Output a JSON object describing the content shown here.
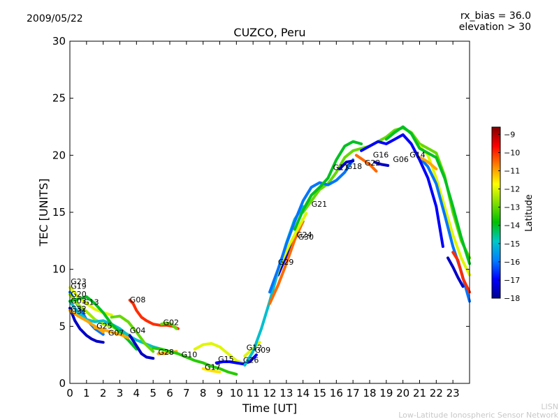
{
  "header": {
    "date": "2009/05/22",
    "rx_bias": "rx_bias = 36.0",
    "elevation": "elevation > 30"
  },
  "footer": {
    "org_short": "LISN",
    "org_long": "Low-Latitude Ionospheric Sensor Network"
  },
  "colors": {
    "blue": "#0000b0",
    "cyan": "#1a99d0",
    "teal": "#19a888",
    "green": "#1fc41f",
    "lime": "#9be21c",
    "yellow": "#f0e000",
    "orange": "#ff9a00",
    "red": "#e01010"
  },
  "chart_data": {
    "type": "line",
    "title": "CUZCO, Peru",
    "xlabel": "Time [UT]",
    "ylabel": "TEC [UNITS]",
    "xlim": [
      0,
      24
    ],
    "ylim": [
      0,
      30
    ],
    "xticks": [
      "0",
      "1",
      "2",
      "3",
      "4",
      "5",
      "6",
      "7",
      "8",
      "9",
      "10",
      "11",
      "12",
      "13",
      "14",
      "15",
      "16",
      "17",
      "18",
      "19",
      "20",
      "21",
      "22",
      "23"
    ],
    "yticks": [
      "0",
      "5",
      "10",
      "15",
      "20",
      "25",
      "30"
    ],
    "grid": false,
    "colorbar": {
      "label": "Latitude",
      "min": -18,
      "max": -8.6,
      "ticks": [
        "-18",
        "-17",
        "-16",
        "-15",
        "-14",
        "-13",
        "-12",
        "-11",
        "-10",
        "-9"
      ],
      "stops": [
        "#00008f",
        "#0000ff",
        "#0080ff",
        "#00c8c8",
        "#00c000",
        "#80e000",
        "#ffff00",
        "#ff8000",
        "#ff0000",
        "#800000"
      ]
    },
    "series": [
      {
        "name": "G23",
        "label_x": 0.05,
        "label_y": 8.7,
        "lat": -12,
        "x": [
          0,
          0.5,
          1,
          1.5,
          2,
          2.5
        ],
        "y": [
          8.4,
          7.6,
          7.0,
          6.5,
          6.2,
          6.0
        ]
      },
      {
        "name": "G19",
        "label_x": 0.05,
        "label_y": 8.3,
        "lat": -16,
        "x": [
          0,
          0.5,
          1,
          1.5,
          2
        ],
        "y": [
          8.0,
          6.8,
          5.6,
          4.8,
          4.3
        ]
      },
      {
        "name": "G20",
        "label_x": 0.05,
        "label_y": 7.6,
        "lat": -12.5,
        "x": [
          0,
          0.5,
          1,
          1.5,
          2,
          2.5,
          3,
          3.5
        ],
        "y": [
          7.8,
          6.9,
          6.3,
          5.6,
          5.2,
          5.0,
          4.6,
          4.3
        ]
      },
      {
        "name": "G03",
        "label_x": 0.05,
        "label_y": 7.0,
        "lat": -15,
        "x": [
          0,
          0.5,
          1,
          1.5,
          2,
          2.5,
          3,
          3.5,
          4,
          4.5,
          5,
          5.5,
          6
        ],
        "y": [
          7.2,
          6.2,
          5.6,
          5.4,
          5.5,
          5.2,
          4.8,
          4.2,
          3.8,
          3.5,
          3.2,
          3.0,
          2.8
        ]
      },
      {
        "name": "G13",
        "label_x": 0.8,
        "label_y": 6.9,
        "lat": -14,
        "x": [
          0,
          0.5,
          1,
          1.5,
          2,
          2.5,
          3,
          3.5,
          4
        ],
        "y": [
          7.2,
          7.4,
          7.6,
          7.0,
          6.2,
          5.2,
          4.5,
          3.8,
          3.0
        ]
      },
      {
        "name": "G32",
        "label_x": 0.05,
        "label_y": 6.3,
        "lat": -17.5,
        "x": [
          0,
          0.3,
          0.6,
          1,
          1.3,
          1.6,
          2
        ],
        "y": [
          6.6,
          5.5,
          4.8,
          4.2,
          3.9,
          3.7,
          3.6
        ]
      },
      {
        "name": "G31",
        "label_x": 0.05,
        "label_y": 6.1,
        "lat": -11,
        "x": [
          0,
          0.5,
          1,
          1.5,
          2
        ],
        "y": [
          6.4,
          5.9,
          5.5,
          5.0,
          4.5
        ]
      },
      {
        "name": "G30",
        "label_x": 13.7,
        "label_y": 12.6,
        "lat": -17.5,
        "x": [
          12.5,
          13,
          13.5,
          14
        ],
        "y": [
          9.5,
          11.2,
          12.8,
          14.2
        ]
      },
      {
        "name": "G08",
        "label_x": 3.6,
        "label_y": 7.1,
        "lat": -10,
        "x": [
          3.6,
          3.8,
          4,
          4.3,
          4.6,
          5,
          5.4,
          5.8,
          6.2,
          6.5
        ],
        "y": [
          7.3,
          7.0,
          6.4,
          5.8,
          5.5,
          5.2,
          5.1,
          5.1,
          5.0,
          4.8
        ]
      },
      {
        "name": "G25",
        "label_x": 1.6,
        "label_y": 4.8,
        "lat": -11,
        "x": [
          1.5,
          2,
          2.5,
          3,
          3.5
        ],
        "y": [
          4.9,
          4.7,
          4.5,
          4.3,
          4.0
        ]
      },
      {
        "name": "G07",
        "label_x": 2.3,
        "label_y": 4.2,
        "lat": -13,
        "x": [
          2.5,
          3,
          3.5,
          4,
          4.5,
          5
        ],
        "y": [
          5.8,
          5.9,
          5.4,
          4.5,
          3.5,
          2.8
        ]
      },
      {
        "name": "G04",
        "label_x": 3.6,
        "label_y": 4.4,
        "lat": -17.5,
        "x": [
          3.6,
          4,
          4.3,
          4.6,
          5
        ],
        "y": [
          4.2,
          3.3,
          2.6,
          2.3,
          2.2
        ]
      },
      {
        "name": "G02",
        "label_x": 5.6,
        "label_y": 5.1,
        "lat": -13,
        "x": [
          5.5,
          5.8,
          6.1,
          6.4
        ],
        "y": [
          5.2,
          5.3,
          5.2,
          4.8
        ]
      },
      {
        "name": "G28",
        "label_x": 5.3,
        "label_y": 2.5,
        "lat": -11,
        "x": [
          5.3,
          5.6,
          6,
          6.4
        ],
        "y": [
          2.6,
          2.6,
          2.7,
          2.8
        ]
      },
      {
        "name": "G10",
        "label_x": 6.7,
        "label_y": 2.3,
        "lat": -13.5,
        "x": [
          5,
          5.5,
          6,
          6.5,
          7,
          7.5,
          8,
          8.5,
          9,
          9.5,
          10
        ],
        "y": [
          3.1,
          3.0,
          2.8,
          2.6,
          2.3,
          2.0,
          1.8,
          1.5,
          1.3,
          1.0,
          0.8
        ]
      },
      {
        "name": "G17",
        "label_x": 8.1,
        "label_y": 1.2,
        "lat": -11.5,
        "x": [
          8,
          8.5,
          9
        ],
        "y": [
          1.3,
          1.1,
          1.0
        ]
      },
      {
        "name": "G15",
        "label_x": 8.9,
        "label_y": 1.9,
        "lat": -12,
        "x": [
          7.5,
          8,
          8.5,
          9,
          9.5,
          10,
          10.5
        ],
        "y": [
          3.0,
          3.4,
          3.5,
          3.2,
          2.6,
          2.0,
          1.7
        ]
      },
      {
        "name": "G26",
        "label_x": 10.4,
        "label_y": 1.8,
        "lat": -17,
        "x": [
          8.8,
          9.2,
          9.6,
          10,
          10.4,
          10.8,
          11.2
        ],
        "y": [
          1.8,
          1.9,
          1.9,
          1.8,
          1.7,
          1.9,
          2.5
        ]
      },
      {
        "name": "G12",
        "label_x": 10.6,
        "label_y": 2.9,
        "lat": -12,
        "x": [
          10.5,
          10.8,
          11.1,
          11.4
        ],
        "y": [
          2.4,
          2.8,
          3.2,
          3.6
        ]
      },
      {
        "name": "G09",
        "label_x": 11.1,
        "label_y": 2.7,
        "lat": -15,
        "x": [
          10.5,
          11,
          11.5,
          12,
          12.5,
          13,
          13.5,
          14
        ],
        "y": [
          1.6,
          2.8,
          4.8,
          7.2,
          9.8,
          12.3,
          14.4,
          15.5
        ]
      },
      {
        "name": "G29",
        "label_x": 12.5,
        "label_y": 10.4,
        "lat": -10.5,
        "x": [
          12,
          12.5,
          13,
          13.5,
          14
        ],
        "y": [
          7.0,
          8.6,
          10.5,
          12.6,
          14.2
        ]
      },
      {
        "name": "G24",
        "label_x": 13.6,
        "label_y": 12.8,
        "lat": -12,
        "x": [
          12.2,
          12.7,
          13.2,
          13.7,
          14.2
        ],
        "y": [
          8.8,
          10.6,
          12.2,
          13.6,
          14.9
        ]
      },
      {
        "name": "G21",
        "label_x": 14.5,
        "label_y": 15.5,
        "lat": -16,
        "x": [
          12,
          12.5,
          13,
          13.5,
          14,
          14.5,
          15,
          15.5,
          16,
          16.5,
          17
        ],
        "y": [
          8.0,
          10.0,
          12.2,
          14.2,
          16.0,
          17.2,
          17.6,
          17.4,
          17.8,
          18.5,
          19.6
        ]
      },
      {
        "name": "G11",
        "label_x": 15.8,
        "label_y": 18.7,
        "lat": -14,
        "x": [
          13.5,
          14,
          14.5,
          15,
          15.5,
          16,
          16.5,
          17,
          17.5
        ],
        "y": [
          13.5,
          15.2,
          16.5,
          17.2,
          18.0,
          19.6,
          20.8,
          21.2,
          21.0
        ]
      },
      {
        "name": "G18",
        "label_x": 16.6,
        "label_y": 18.8,
        "lat": -17.5,
        "x": [
          16.2,
          16.6,
          17
        ],
        "y": [
          18.8,
          19.4,
          19.5
        ]
      },
      {
        "name": "G22",
        "label_x": 17.7,
        "label_y": 19.1,
        "lat": -10.5,
        "x": [
          17.2,
          17.6,
          18,
          18.4
        ],
        "y": [
          20.0,
          19.6,
          19.2,
          18.6
        ]
      },
      {
        "name": "G16",
        "label_x": 18.2,
        "label_y": 19.8,
        "lat": -17.5,
        "x": [
          18.3,
          18.7,
          19.1
        ],
        "y": [
          19.4,
          19.2,
          19.1
        ]
      },
      {
        "name": "G06",
        "label_x": 19.4,
        "label_y": 19.4,
        "lat": -17,
        "x": [
          17.5,
          18,
          18.5,
          19,
          19.5,
          20,
          20.5,
          21,
          21.5,
          22,
          22.4
        ],
        "y": [
          20.4,
          20.8,
          21.2,
          21.0,
          21.4,
          21.8,
          21.0,
          19.6,
          18.0,
          15.5,
          12.0
        ]
      },
      {
        "name": "G14",
        "label_x": 20.4,
        "label_y": 19.8,
        "lat": -14,
        "x": [
          19,
          19.5,
          20,
          20.5,
          21,
          21.5,
          22,
          22.5,
          23,
          23.5,
          24
        ],
        "y": [
          21.4,
          22.0,
          22.5,
          21.9,
          20.6,
          20.2,
          19.8,
          18.0,
          15.5,
          12.8,
          10.5
        ]
      }
    ],
    "extra_curves": [
      {
        "lat": -13,
        "x": [
          14,
          14.5,
          15,
          15.5,
          16,
          16.5,
          17,
          17.5,
          18,
          18.5,
          19,
          19.5,
          20,
          20.5,
          21,
          21.5,
          22,
          22.5,
          23,
          23.5,
          24
        ],
        "y": [
          15,
          16,
          17,
          17.5,
          18.5,
          19.8,
          20.4,
          20.6,
          20.8,
          21.2,
          21.6,
          22.2,
          22.4,
          22.0,
          21.0,
          20.6,
          20.2,
          18.2,
          15.0,
          12.5,
          11.0
        ]
      },
      {
        "lat": -12,
        "x": [
          21,
          21.5,
          22,
          22.5,
          23,
          23.5,
          24
        ],
        "y": [
          20.8,
          20.0,
          18.0,
          15.5,
          13.0,
          11.0,
          9.5
        ]
      },
      {
        "lat": -16,
        "x": [
          21,
          21.5,
          22,
          22.5,
          23,
          23.5,
          24
        ],
        "y": [
          19.8,
          19.0,
          17.5,
          14.8,
          12.0,
          9.8,
          7.2
        ]
      },
      {
        "lat": -10,
        "x": [
          23,
          23.3,
          23.6,
          24
        ],
        "y": [
          11.5,
          10.8,
          9.2,
          8.0
        ]
      },
      {
        "lat": -17.5,
        "x": [
          22.7,
          23,
          23.3,
          23.6
        ],
        "y": [
          11.0,
          10.2,
          9.3,
          8.5
        ]
      },
      {
        "lat": -11,
        "x": [
          21,
          21.3,
          21.6,
          22
        ],
        "y": [
          19.8,
          19.6,
          19.3,
          18.8
        ]
      }
    ]
  }
}
